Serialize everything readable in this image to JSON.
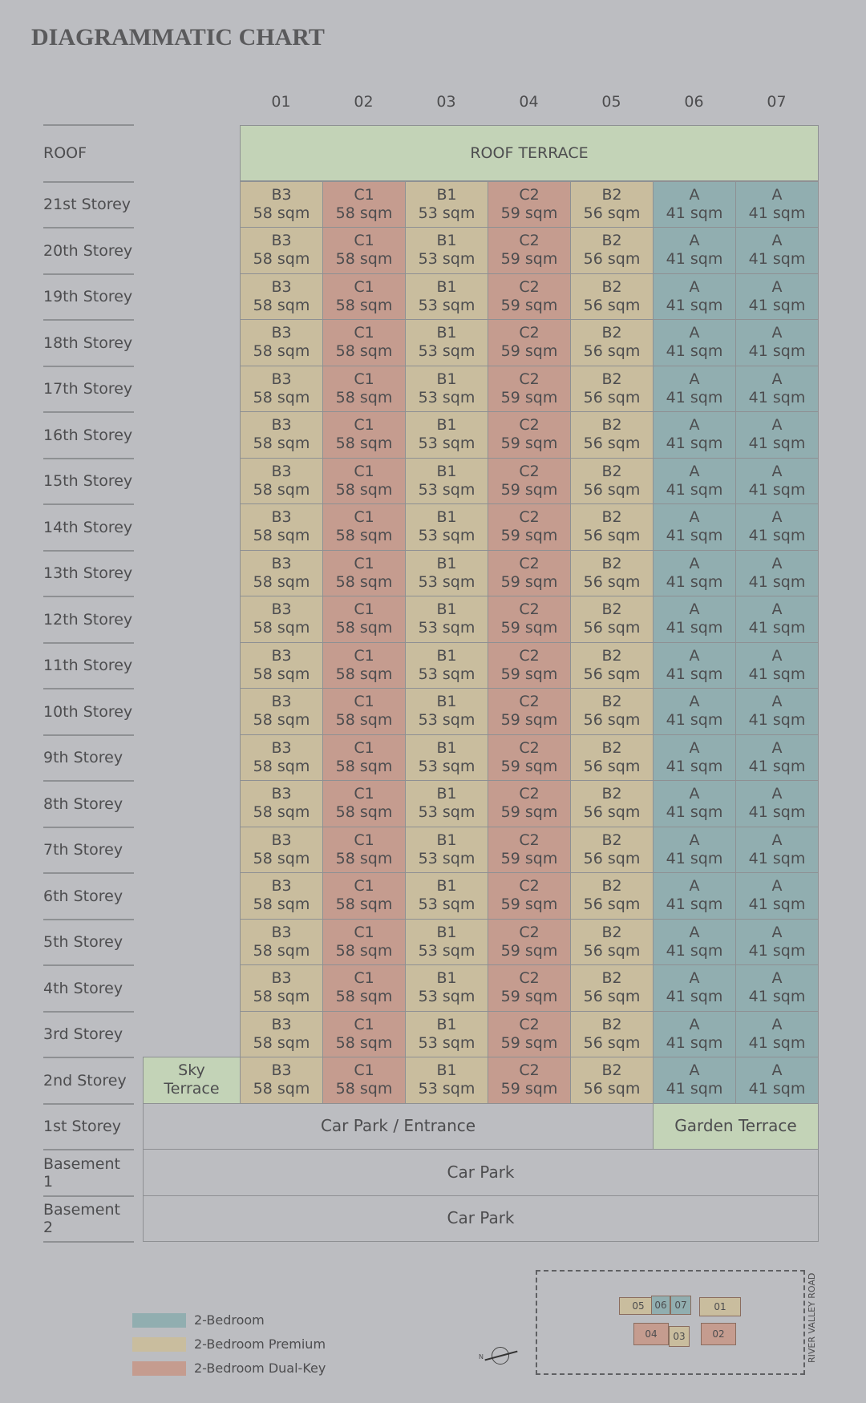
{
  "title": "DIAGRAMMATIC CHART",
  "columns": [
    {
      "label": "01",
      "color": "#c9bd9e"
    },
    {
      "label": "02",
      "color": "#c59c8f"
    },
    {
      "label": "03",
      "color": "#c9bd9e"
    },
    {
      "label": "04",
      "color": "#c59c8f"
    },
    {
      "label": "05",
      "color": "#c9bd9e"
    },
    {
      "label": "06",
      "color": "#91aeb0"
    },
    {
      "label": "07",
      "color": "#91aeb0"
    }
  ],
  "roof": {
    "label": "ROOF",
    "terrace": "ROOF TERRACE"
  },
  "storeys": [
    {
      "label": "21st Storey",
      "units": [
        [
          "B3",
          "58 sqm"
        ],
        [
          "C1",
          "58 sqm"
        ],
        [
          "B1",
          "53 sqm"
        ],
        [
          "C2",
          "59 sqm"
        ],
        [
          "B2",
          "56 sqm"
        ],
        [
          "A",
          "41 sqm"
        ],
        [
          "A",
          "41 sqm"
        ]
      ]
    },
    {
      "label": "20th Storey",
      "units": [
        [
          "B3",
          "58 sqm"
        ],
        [
          "C1",
          "58 sqm"
        ],
        [
          "B1",
          "53 sqm"
        ],
        [
          "C2",
          "59 sqm"
        ],
        [
          "B2",
          "56 sqm"
        ],
        [
          "A",
          "41 sqm"
        ],
        [
          "A",
          "41 sqm"
        ]
      ]
    },
    {
      "label": "19th Storey",
      "units": [
        [
          "B3",
          "58 sqm"
        ],
        [
          "C1",
          "58 sqm"
        ],
        [
          "B1",
          "53 sqm"
        ],
        [
          "C2",
          "59 sqm"
        ],
        [
          "B2",
          "56 sqm"
        ],
        [
          "A",
          "41 sqm"
        ],
        [
          "A",
          "41 sqm"
        ]
      ]
    },
    {
      "label": "18th Storey",
      "units": [
        [
          "B3",
          "58 sqm"
        ],
        [
          "C1",
          "58 sqm"
        ],
        [
          "B1",
          "53 sqm"
        ],
        [
          "C2",
          "59 sqm"
        ],
        [
          "B2",
          "56 sqm"
        ],
        [
          "A",
          "41 sqm"
        ],
        [
          "A",
          "41 sqm"
        ]
      ]
    },
    {
      "label": "17th Storey",
      "units": [
        [
          "B3",
          "58 sqm"
        ],
        [
          "C1",
          "58 sqm"
        ],
        [
          "B1",
          "53 sqm"
        ],
        [
          "C2",
          "59 sqm"
        ],
        [
          "B2",
          "56 sqm"
        ],
        [
          "A",
          "41 sqm"
        ],
        [
          "A",
          "41 sqm"
        ]
      ]
    },
    {
      "label": "16th Storey",
      "units": [
        [
          "B3",
          "58 sqm"
        ],
        [
          "C1",
          "58 sqm"
        ],
        [
          "B1",
          "53 sqm"
        ],
        [
          "C2",
          "59 sqm"
        ],
        [
          "B2",
          "56 sqm"
        ],
        [
          "A",
          "41 sqm"
        ],
        [
          "A",
          "41 sqm"
        ]
      ]
    },
    {
      "label": "15th Storey",
      "units": [
        [
          "B3",
          "58 sqm"
        ],
        [
          "C1",
          "58 sqm"
        ],
        [
          "B1",
          "53 sqm"
        ],
        [
          "C2",
          "59 sqm"
        ],
        [
          "B2",
          "56 sqm"
        ],
        [
          "A",
          "41 sqm"
        ],
        [
          "A",
          "41 sqm"
        ]
      ]
    },
    {
      "label": "14th Storey",
      "units": [
        [
          "B3",
          "58 sqm"
        ],
        [
          "C1",
          "58 sqm"
        ],
        [
          "B1",
          "53 sqm"
        ],
        [
          "C2",
          "59 sqm"
        ],
        [
          "B2",
          "56 sqm"
        ],
        [
          "A",
          "41 sqm"
        ],
        [
          "A",
          "41 sqm"
        ]
      ]
    },
    {
      "label": "13th Storey",
      "units": [
        [
          "B3",
          "58 sqm"
        ],
        [
          "C1",
          "58 sqm"
        ],
        [
          "B1",
          "53 sqm"
        ],
        [
          "C2",
          "59 sqm"
        ],
        [
          "B2",
          "56 sqm"
        ],
        [
          "A",
          "41 sqm"
        ],
        [
          "A",
          "41 sqm"
        ]
      ]
    },
    {
      "label": "12th Storey",
      "units": [
        [
          "B3",
          "58 sqm"
        ],
        [
          "C1",
          "58 sqm"
        ],
        [
          "B1",
          "53 sqm"
        ],
        [
          "C2",
          "59 sqm"
        ],
        [
          "B2",
          "56 sqm"
        ],
        [
          "A",
          "41 sqm"
        ],
        [
          "A",
          "41 sqm"
        ]
      ]
    },
    {
      "label": "11th Storey",
      "units": [
        [
          "B3",
          "58 sqm"
        ],
        [
          "C1",
          "58 sqm"
        ],
        [
          "B1",
          "53 sqm"
        ],
        [
          "C2",
          "59 sqm"
        ],
        [
          "B2",
          "56 sqm"
        ],
        [
          "A",
          "41 sqm"
        ],
        [
          "A",
          "41 sqm"
        ]
      ]
    },
    {
      "label": "10th Storey",
      "units": [
        [
          "B3",
          "58 sqm"
        ],
        [
          "C1",
          "58 sqm"
        ],
        [
          "B1",
          "53 sqm"
        ],
        [
          "C2",
          "59 sqm"
        ],
        [
          "B2",
          "56 sqm"
        ],
        [
          "A",
          "41 sqm"
        ],
        [
          "A",
          "41 sqm"
        ]
      ]
    },
    {
      "label": "9th Storey",
      "units": [
        [
          "B3",
          "58 sqm"
        ],
        [
          "C1",
          "58 sqm"
        ],
        [
          "B1",
          "53 sqm"
        ],
        [
          "C2",
          "59 sqm"
        ],
        [
          "B2",
          "56 sqm"
        ],
        [
          "A",
          "41 sqm"
        ],
        [
          "A",
          "41 sqm"
        ]
      ]
    },
    {
      "label": "8th Storey",
      "units": [
        [
          "B3",
          "58 sqm"
        ],
        [
          "C1",
          "58 sqm"
        ],
        [
          "B1",
          "53 sqm"
        ],
        [
          "C2",
          "59 sqm"
        ],
        [
          "B2",
          "56 sqm"
        ],
        [
          "A",
          "41 sqm"
        ],
        [
          "A",
          "41 sqm"
        ]
      ]
    },
    {
      "label": "7th Storey",
      "units": [
        [
          "B3",
          "58 sqm"
        ],
        [
          "C1",
          "58 sqm"
        ],
        [
          "B1",
          "53 sqm"
        ],
        [
          "C2",
          "59 sqm"
        ],
        [
          "B2",
          "56 sqm"
        ],
        [
          "A",
          "41 sqm"
        ],
        [
          "A",
          "41 sqm"
        ]
      ]
    },
    {
      "label": "6th Storey",
      "units": [
        [
          "B3",
          "58 sqm"
        ],
        [
          "C1",
          "58 sqm"
        ],
        [
          "B1",
          "53 sqm"
        ],
        [
          "C2",
          "59 sqm"
        ],
        [
          "B2",
          "56 sqm"
        ],
        [
          "A",
          "41 sqm"
        ],
        [
          "A",
          "41 sqm"
        ]
      ]
    },
    {
      "label": "5th Storey",
      "units": [
        [
          "B3",
          "58 sqm"
        ],
        [
          "C1",
          "58 sqm"
        ],
        [
          "B1",
          "53 sqm"
        ],
        [
          "C2",
          "59 sqm"
        ],
        [
          "B2",
          "56 sqm"
        ],
        [
          "A",
          "41 sqm"
        ],
        [
          "A",
          "41 sqm"
        ]
      ]
    },
    {
      "label": "4th Storey",
      "units": [
        [
          "B3",
          "58 sqm"
        ],
        [
          "C1",
          "58 sqm"
        ],
        [
          "B1",
          "53 sqm"
        ],
        [
          "C2",
          "59 sqm"
        ],
        [
          "B2",
          "56 sqm"
        ],
        [
          "A",
          "41 sqm"
        ],
        [
          "A",
          "41 sqm"
        ]
      ]
    },
    {
      "label": "3rd Storey",
      "units": [
        [
          "B3",
          "58 sqm"
        ],
        [
          "C1",
          "58 sqm"
        ],
        [
          "B1",
          "53 sqm"
        ],
        [
          "C2",
          "59 sqm"
        ],
        [
          "B2",
          "56 sqm"
        ],
        [
          "A",
          "41 sqm"
        ],
        [
          "A",
          "41 sqm"
        ]
      ]
    },
    {
      "label": "2nd Storey",
      "units": [
        [
          "B3",
          "58 sqm"
        ],
        [
          "C1",
          "58 sqm"
        ],
        [
          "B1",
          "53 sqm"
        ],
        [
          "C2",
          "59 sqm"
        ],
        [
          "B2",
          "56 sqm"
        ],
        [
          "A",
          "41 sqm"
        ],
        [
          "A",
          "41 sqm"
        ]
      ]
    }
  ],
  "sky_terrace": "Sky Terrace",
  "ground": {
    "label": "1st Storey",
    "car_park": "Car Park / Entrance",
    "garden": "Garden Terrace"
  },
  "basements": [
    {
      "label": "Basement 1",
      "content": "Car Park"
    },
    {
      "label": "Basement 2",
      "content": "Car Park"
    }
  ],
  "legend": [
    {
      "label": "2-Bedroom",
      "color": "#91aeb0"
    },
    {
      "label": "2-Bedroom Premium",
      "color": "#c9bd9e"
    },
    {
      "label": "2-Bedroom Dual-Key",
      "color": "#c59c8f"
    }
  ],
  "site_plan": {
    "units": [
      {
        "label": "05",
        "color": "#c9bd9e"
      },
      {
        "label": "06",
        "color": "#91aeb0"
      },
      {
        "label": "07",
        "color": "#91aeb0"
      },
      {
        "label": "01",
        "color": "#c9bd9e"
      },
      {
        "label": "04",
        "color": "#c59c8f"
      },
      {
        "label": "03",
        "color": "#c9bd9e"
      },
      {
        "label": "02",
        "color": "#c59c8f"
      }
    ],
    "road": "RIVER VALLEY ROAD",
    "north": "N"
  }
}
